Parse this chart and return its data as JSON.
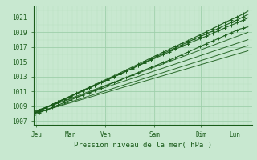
{
  "bg_color": "#c8e8d0",
  "grid_major_color": "#9ecfaa",
  "grid_minor_color": "#b8dfc0",
  "line_color": "#1a5c1a",
  "xlabel": "Pression niveau de la mer( hPa )",
  "ylim": [
    1006.5,
    1022.5
  ],
  "yticks": [
    1007,
    1009,
    1011,
    1013,
    1015,
    1017,
    1019,
    1021
  ],
  "x_days": [
    "Jeu",
    "Mar",
    "Ven",
    "Sam",
    "Dim",
    "Lun"
  ],
  "x_day_positions": [
    0.08,
    0.95,
    1.85,
    3.1,
    4.3,
    5.15
  ],
  "xlim": [
    0,
    5.6
  ],
  "n_points": 140,
  "straight_lines": [
    [
      1008.0,
      5.5,
      1017.2
    ],
    [
      1008.2,
      5.5,
      1019.0
    ],
    [
      1008.0,
      5.5,
      1016.5
    ],
    [
      1008.3,
      5.5,
      1018.0
    ]
  ],
  "wavy_lines": [
    [
      1008.0,
      5.5,
      1022.0,
      42
    ],
    [
      1008.1,
      5.5,
      1021.5,
      77
    ],
    [
      1008.0,
      5.5,
      1021.0,
      13
    ],
    [
      1007.8,
      5.5,
      1019.5,
      99
    ]
  ]
}
